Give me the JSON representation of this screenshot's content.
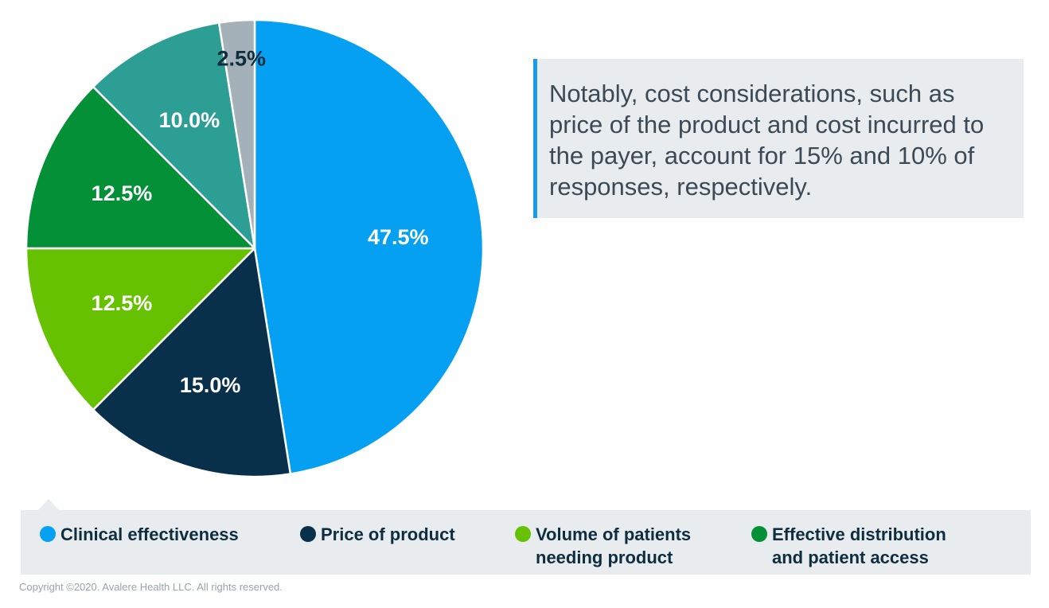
{
  "chart_data": {
    "type": "pie",
    "slices": [
      {
        "name": "Clinical effectiveness",
        "value": 47.5,
        "label": "47.5%",
        "color": "#05a0f1",
        "label_color": "#ffffff"
      },
      {
        "name": "Price of product",
        "value": 15.0,
        "label": "15.0%",
        "color": "#08304a",
        "label_color": "#ffffff"
      },
      {
        "name": "Volume of patients needing product",
        "value": 12.5,
        "label": "12.5%",
        "color": "#66c200",
        "label_color": "#ffffff"
      },
      {
        "name": "Effective distribution and patient access",
        "value": 12.5,
        "label": "12.5%",
        "color": "#049037",
        "label_color": "#ffffff"
      },
      {
        "name": "",
        "value": 10.0,
        "label": "10.0%",
        "color": "#2d9e94",
        "label_color": "#ffffff"
      },
      {
        "name": "",
        "value": 2.5,
        "label": "2.5%",
        "color": "#a4b1b8",
        "label_color": "#0e2d3f"
      }
    ],
    "start": "12 o'clock",
    "direction": "clockwise",
    "legend_position": "bottom"
  },
  "callout": {
    "lines": [
      "Notably, cost considerations, such as",
      "price of the product and cost incurred to",
      "the payer, account for 15% and 10% of",
      "responses, respectively."
    ],
    "accent_color": "#1a9be8"
  },
  "legend": {
    "items": [
      {
        "lines": [
          "Clinical effectiveness"
        ],
        "color": "#05a0f1"
      },
      {
        "lines": [
          "Price of product"
        ],
        "color": "#08304a"
      },
      {
        "lines": [
          "Volume of patients",
          "needing product"
        ],
        "color": "#66c200"
      },
      {
        "lines": [
          "Effective distribution",
          "and patient access"
        ],
        "color": "#049037"
      }
    ]
  },
  "footer": {
    "copyright": "Copyright ©2020. Avalere Health LLC. All rights reserved."
  }
}
